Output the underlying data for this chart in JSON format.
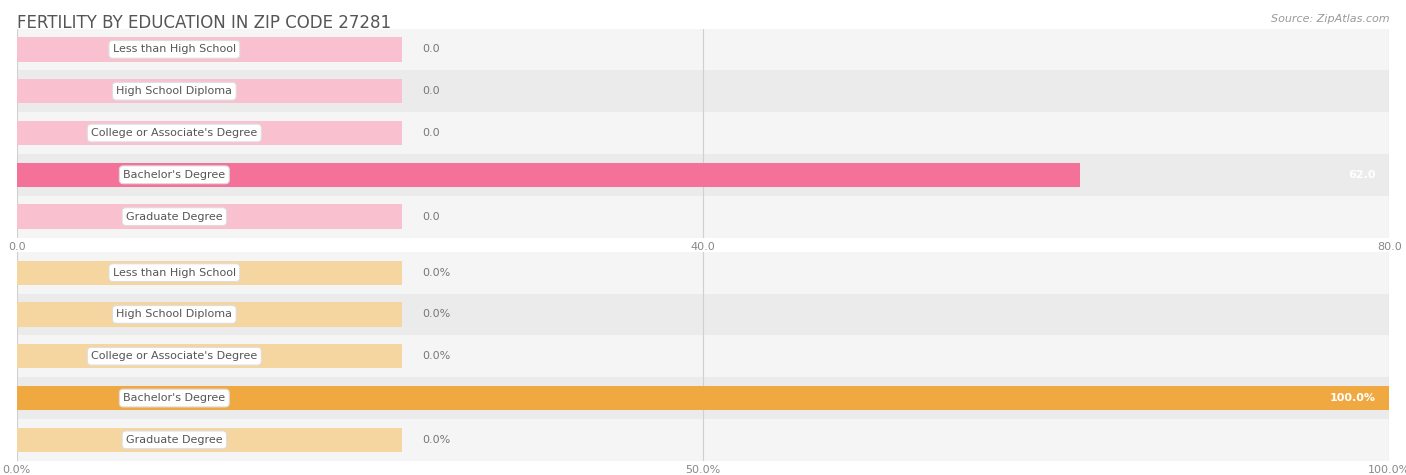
{
  "title": "FERTILITY BY EDUCATION IN ZIP CODE 27281",
  "source": "Source: ZipAtlas.com",
  "top_chart": {
    "categories": [
      "Less than High School",
      "High School Diploma",
      "College or Associate's Degree",
      "Bachelor's Degree",
      "Graduate Degree"
    ],
    "values": [
      0.0,
      0.0,
      0.0,
      62.0,
      0.0
    ],
    "bar_color_active": "#f4729a",
    "bar_color_inactive": "#f9c0d0",
    "xlim": [
      0,
      80
    ],
    "xticks": [
      0.0,
      40.0,
      80.0
    ],
    "xtick_labels": [
      "0.0",
      "40.0",
      "80.0"
    ]
  },
  "bottom_chart": {
    "categories": [
      "Less than High School",
      "High School Diploma",
      "College or Associate's Degree",
      "Bachelor's Degree",
      "Graduate Degree"
    ],
    "values": [
      0.0,
      0.0,
      0.0,
      100.0,
      0.0
    ],
    "bar_color_active": "#f0a840",
    "bar_color_inactive": "#f5d5a0",
    "xlim": [
      0,
      100
    ],
    "xticks": [
      0.0,
      50.0,
      100.0
    ],
    "xtick_labels": [
      "0.0%",
      "50.0%",
      "100.0%"
    ]
  },
  "title_color": "#555555",
  "title_fontsize": 12,
  "source_fontsize": 8,
  "bar_height": 0.58,
  "label_fontsize": 8,
  "value_fontsize": 8,
  "row_colors": [
    "#f5f5f5",
    "#ebebeb"
  ]
}
